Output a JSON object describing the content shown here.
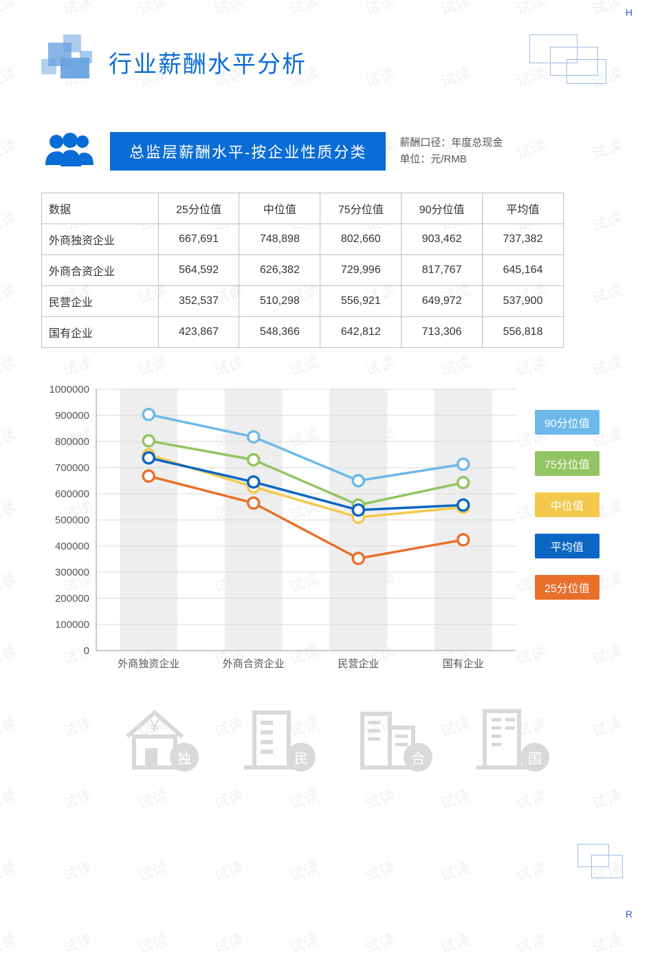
{
  "page_title": "行业薪酬水平分析",
  "corner_top": "H",
  "corner_bottom": "R",
  "watermark_text": "试读",
  "section": {
    "banner": "总监层薪酬水平-按企业性质分类",
    "meta_line1": "薪酬口径：年度总现金",
    "meta_line2": "单位：元/RMB"
  },
  "table": {
    "columns": [
      "数据",
      "25分位值",
      "中位值",
      "75分位值",
      "90分位值",
      "平均值"
    ],
    "rows": [
      [
        "外商独资企业",
        "667,691",
        "748,898",
        "802,660",
        "903,462",
        "737,382"
      ],
      [
        "外商合资企业",
        "564,592",
        "626,382",
        "729,996",
        "817,767",
        "645,164"
      ],
      [
        "民营企业",
        "352,537",
        "510,298",
        "556,921",
        "649,972",
        "537,900"
      ],
      [
        "国有企业",
        "423,867",
        "548,366",
        "642,812",
        "713,306",
        "556,818"
      ]
    ]
  },
  "chart": {
    "type": "line",
    "categories": [
      "外商独资企业",
      "外商合资企业",
      "民营企业",
      "国有企业"
    ],
    "ylim": [
      0,
      1000000
    ],
    "ytick_step": 100000,
    "series": [
      {
        "key": "p90",
        "label": "90分位值",
        "color": "#6cb8ea",
        "values": [
          903462,
          817767,
          649972,
          713306
        ]
      },
      {
        "key": "p75",
        "label": "75分位值",
        "color": "#93c462",
        "values": [
          802660,
          729996,
          556921,
          642812
        ]
      },
      {
        "key": "median",
        "label": "中位值",
        "color": "#f2c94c",
        "values": [
          748898,
          626382,
          510298,
          548366
        ]
      },
      {
        "key": "mean",
        "label": "平均值",
        "color": "#0a66c2",
        "values": [
          737382,
          645164,
          537900,
          556818
        ]
      },
      {
        "key": "p25",
        "label": "25分位值",
        "color": "#e8702a",
        "values": [
          667691,
          564592,
          352537,
          423867
        ]
      }
    ],
    "background_color": "#ffffff",
    "grid_color": "#d9d9d9",
    "band_color": "#eeeeee",
    "axis_label_color": "#555555",
    "axis_label_fontsize": 15,
    "line_width": 3.5,
    "marker_radius": 8,
    "marker_fill": "#ffffff",
    "marker_stroke_width": 3.5
  },
  "bottom_badges": [
    "独",
    "民",
    "合",
    "国"
  ],
  "colors": {
    "primary": "#0a6cd6",
    "deco_border": "#9fbbe6",
    "icon_gray": "#d9d9d9"
  }
}
